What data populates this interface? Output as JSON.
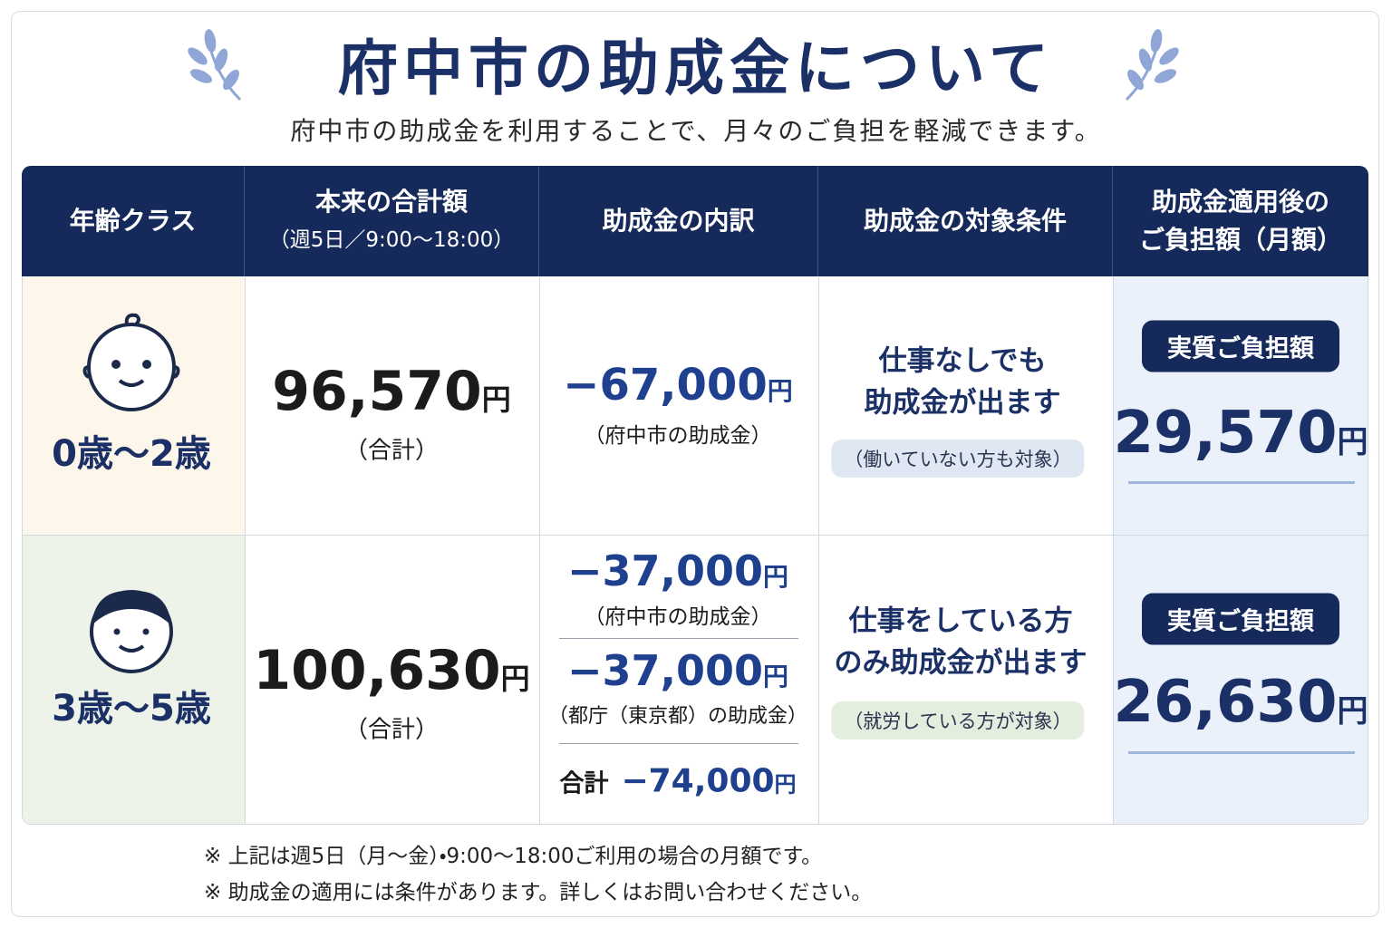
{
  "header": {
    "title": "府中市の助成金について",
    "subtitle": "府中市の助成金を利用することで、月々のご負担を軽減できます。"
  },
  "table": {
    "columns": [
      [
        "年齢クラス"
      ],
      [
        "本来の合計額",
        "（週5日／9:00〜18:00）"
      ],
      [
        "助成金の内訳"
      ],
      [
        "助成金の対象条件"
      ],
      [
        "助成金適用後の",
        "ご負担額（月額）"
      ]
    ],
    "rows": [
      {
        "age": "0歳〜2歳",
        "total": {
          "amount": "96,570",
          "unit": "円",
          "note": "（合計）"
        },
        "breakdown": [
          {
            "amount": "−67,000",
            "unit": "円",
            "label": "（府中市の助成金）"
          }
        ],
        "condition": {
          "lines": [
            "仕事なしでも",
            "助成金が出ます"
          ],
          "note": "（働いていない方も対象）"
        },
        "result": {
          "badge": "実質ご負担額",
          "amount": "29,570",
          "unit": "円"
        }
      },
      {
        "age": "3歳〜5歳",
        "total": {
          "amount": "100,630",
          "unit": "円",
          "note": "（合計）"
        },
        "breakdown": [
          {
            "amount": "−37,000",
            "unit": "円",
            "label": "（府中市の助成金）"
          },
          {
            "amount": "−37,000",
            "unit": "円",
            "label": "（都庁（東京都）の助成金）"
          }
        ],
        "breakdown_total": {
          "label": "合計",
          "amount": "−74,000",
          "unit": "円"
        },
        "condition": {
          "lines": [
            "仕事をしている方",
            "のみ助成金が出ます"
          ],
          "note": "（就労している方が対象）"
        },
        "result": {
          "badge": "実質ご負担額",
          "amount": "26,630",
          "unit": "円"
        }
      }
    ]
  },
  "footnotes": [
    "※ 上記は週5日（月〜金）・9:00〜18:00ご利用の場合の月額です。",
    "※ 助成金の適用には条件があります。詳しくはお問い合わせください。"
  ]
}
